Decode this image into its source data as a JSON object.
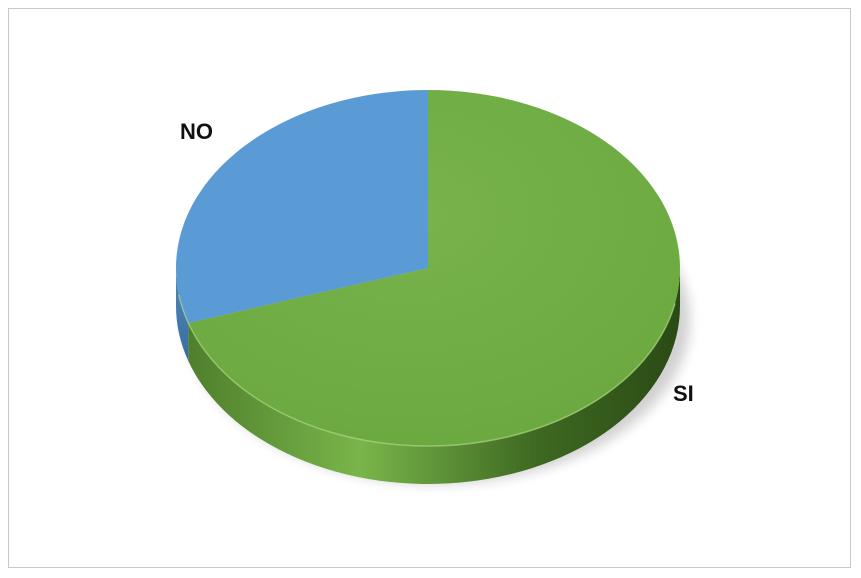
{
  "chart_data": {
    "type": "pie",
    "title": "",
    "categories": [
      "SI",
      "NO"
    ],
    "values": [
      70,
      30
    ],
    "unit": "%",
    "colors": {
      "SI": "#70ad47",
      "NO": "#5b9bd5"
    }
  }
}
